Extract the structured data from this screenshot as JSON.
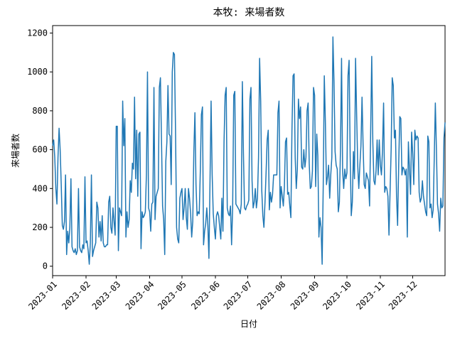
{
  "chart_data": {
    "type": "line",
    "title": "本牧: 来場者数",
    "x_label": "日付",
    "y_label": "来場者数",
    "color": "#1f77b4",
    "xlim": [
      0,
      364
    ],
    "xticks": [
      {
        "value": 0,
        "label": "2023-01"
      },
      {
        "value": 31,
        "label": "2023-02"
      },
      {
        "value": 59,
        "label": "2023-03"
      },
      {
        "value": 90,
        "label": "2023-04"
      },
      {
        "value": 120,
        "label": "2023-05"
      },
      {
        "value": 151,
        "label": "2023-06"
      },
      {
        "value": 181,
        "label": "2023-07"
      },
      {
        "value": 212,
        "label": "2023-08"
      },
      {
        "value": 243,
        "label": "2023-09"
      },
      {
        "value": 273,
        "label": "2023-10"
      },
      {
        "value": 304,
        "label": "2023-11"
      },
      {
        "value": 334,
        "label": "2023-12"
      }
    ],
    "ylim": [
      -48.5,
      1238.5
    ],
    "yticks": [
      0,
      200,
      400,
      600,
      800,
      1000,
      1200
    ],
    "values": [
      620,
      650,
      560,
      400,
      320,
      560,
      710,
      600,
      420,
      210,
      190,
      230,
      470,
      60,
      180,
      120,
      200,
      450,
      100,
      80,
      70,
      90,
      60,
      80,
      400,
      100,
      80,
      70,
      110,
      90,
      460,
      120,
      130,
      80,
      10,
      120,
      470,
      50,
      80,
      100,
      120,
      330,
      300,
      150,
      230,
      130,
      260,
      120,
      100,
      100,
      110,
      110,
      330,
      360,
      200,
      170,
      300,
      230,
      160,
      720,
      720,
      80,
      300,
      280,
      260,
      850,
      620,
      760,
      150,
      280,
      200,
      240,
      440,
      380,
      530,
      500,
      870,
      450,
      700,
      360,
      680,
      690,
      90,
      280,
      250,
      260,
      280,
      470,
      1000,
      300,
      280,
      180,
      320,
      330,
      920,
      240,
      360,
      380,
      400,
      920,
      970,
      650,
      310,
      240,
      60,
      540,
      640,
      930,
      680,
      670,
      420,
      1000,
      1100,
      1090,
      700,
      200,
      140,
      120,
      350,
      380,
      400,
      240,
      300,
      400,
      250,
      190,
      400,
      350,
      270,
      150,
      230,
      590,
      790,
      420,
      260,
      280,
      270,
      490,
      780,
      820,
      110,
      180,
      220,
      300,
      210,
      40,
      440,
      850,
      470,
      270,
      200,
      140,
      260,
      280,
      260,
      200,
      140,
      350,
      180,
      640,
      880,
      920,
      300,
      270,
      260,
      310,
      110,
      300,
      880,
      900,
      320,
      310,
      300,
      290,
      270,
      320,
      950,
      580,
      300,
      290,
      310,
      320,
      340,
      860,
      920,
      440,
      300,
      330,
      400,
      300,
      350,
      560,
      1070,
      850,
      390,
      260,
      200,
      330,
      480,
      650,
      700,
      290,
      380,
      330,
      370,
      470,
      470,
      470,
      470,
      790,
      850,
      300,
      410,
      360,
      310,
      410,
      640,
      660,
      370,
      380,
      310,
      250,
      700,
      980,
      990,
      560,
      400,
      500,
      860,
      760,
      820,
      510,
      500,
      600,
      510,
      560,
      800,
      840,
      530,
      400,
      410,
      490,
      920,
      880,
      410,
      680,
      570,
      150,
      250,
      200,
      10,
      410,
      980,
      740,
      420,
      460,
      520,
      350,
      470,
      560,
      1180,
      950,
      590,
      520,
      500,
      280,
      330,
      600,
      1070,
      490,
      400,
      500,
      450,
      480,
      980,
      1060,
      570,
      260,
      330,
      590,
      450,
      1070,
      780,
      520,
      400,
      520,
      620,
      870,
      620,
      420,
      400,
      480,
      460,
      440,
      310,
      690,
      1080,
      640,
      440,
      420,
      490,
      650,
      470,
      650,
      520,
      470,
      600,
      840,
      380,
      410,
      400,
      360,
      160,
      380,
      600,
      970,
      930,
      660,
      700,
      360,
      210,
      520,
      770,
      760,
      470,
      510,
      500,
      470,
      500,
      150,
      640,
      500,
      370,
      690,
      580,
      420,
      700,
      650,
      670,
      660,
      380,
      330,
      350,
      440,
      360,
      320,
      280,
      260,
      670,
      640,
      300,
      320,
      250,
      290,
      560,
      840,
      600,
      320,
      270,
      180,
      350,
      300,
      310,
      660,
      740
    ]
  }
}
